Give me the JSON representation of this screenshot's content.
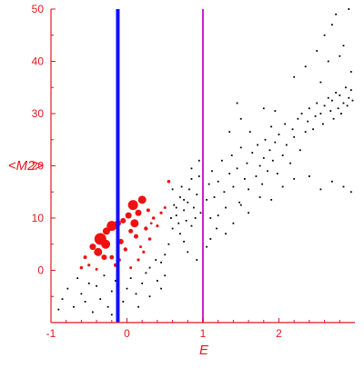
{
  "chart_data": {
    "type": "scatter",
    "title": "",
    "xlabel": "E",
    "ylabel": "<M2>",
    "xlim": [
      -1,
      3.0
    ],
    "ylim": [
      -10,
      50
    ],
    "x_ticks": [
      -1,
      0,
      1,
      2
    ],
    "y_ticks": [
      0,
      10,
      20,
      30,
      40,
      50
    ],
    "x_tick_labels": [
      "-1",
      "0",
      "1",
      "2"
    ],
    "y_tick_labels": [
      "0",
      "10",
      "20",
      "30",
      "40",
      "50"
    ],
    "grid": false,
    "axis_color": "#e4161b",
    "vertical_lines": [
      {
        "x": -0.12,
        "color": "#1010ff"
      },
      {
        "x": 1.0,
        "color": "#cc22cc"
      }
    ],
    "series": [
      {
        "color": "#ee1111",
        "marker": "circle",
        "points": [
          {
            "x": -0.35,
            "y": 6.0,
            "s": 6.5
          },
          {
            "x": -0.28,
            "y": 5.0,
            "s": 5.0
          },
          {
            "x": -0.27,
            "y": 7.5,
            "s": 4.0
          },
          {
            "x": -0.2,
            "y": 8.5,
            "s": 5.5
          },
          {
            "x": -0.12,
            "y": 9.0,
            "s": 3.5
          },
          {
            "x": -0.05,
            "y": 9.5,
            "s": 3.0
          },
          {
            "x": -0.08,
            "y": 5.5,
            "s": 3.0
          },
          {
            "x": -0.45,
            "y": 4.5,
            "s": 3.5
          },
          {
            "x": -0.38,
            "y": 3.5,
            "s": 4.5
          },
          {
            "x": -0.3,
            "y": 2.5,
            "s": 3.0
          },
          {
            "x": 0.02,
            "y": 10.5,
            "s": 3.5
          },
          {
            "x": 0.08,
            "y": 12.5,
            "s": 5.5
          },
          {
            "x": 0.1,
            "y": 9.0,
            "s": 4.5
          },
          {
            "x": 0.15,
            "y": 11.0,
            "s": 3.5
          },
          {
            "x": 0.2,
            "y": 13.5,
            "s": 4.5
          },
          {
            "x": 0.05,
            "y": 7.5,
            "s": 2.5
          },
          {
            "x": -0.02,
            "y": 4.0,
            "s": 2.2
          },
          {
            "x": 0.12,
            "y": 6.5,
            "s": 2.5
          },
          {
            "x": 0.25,
            "y": 8.0,
            "s": 2.2
          },
          {
            "x": 0.28,
            "y": 11.5,
            "s": 2.0
          },
          {
            "x": 0.35,
            "y": 10.0,
            "s": 1.8
          },
          {
            "x": 0.4,
            "y": 8.5,
            "s": 1.6
          },
          {
            "x": 0.3,
            "y": 6.0,
            "s": 1.8
          },
          {
            "x": 0.22,
            "y": 3.5,
            "s": 1.6
          },
          {
            "x": 0.15,
            "y": 2.0,
            "s": 1.6
          },
          {
            "x": 0.05,
            "y": 0.5,
            "s": 1.5
          },
          {
            "x": -0.55,
            "y": 2.5,
            "s": 2.0
          },
          {
            "x": -0.6,
            "y": 0.5,
            "s": 1.8
          },
          {
            "x": -0.5,
            "y": 1.0,
            "s": 1.6
          },
          {
            "x": -0.4,
            "y": 0.2,
            "s": 1.5
          },
          {
            "x": -0.2,
            "y": 2.5,
            "s": 2.4
          },
          {
            "x": -0.15,
            "y": 1.0,
            "s": 2.0
          },
          {
            "x": 0.45,
            "y": 11.0,
            "s": 1.6
          },
          {
            "x": 0.5,
            "y": 12.0,
            "s": 1.5
          },
          {
            "x": 0.55,
            "y": 17.0,
            "s": 1.8
          },
          {
            "x": 0.18,
            "y": 4.5,
            "s": 1.5
          },
          {
            "x": -0.1,
            "y": 2.0,
            "s": 1.8
          },
          {
            "x": 0.32,
            "y": 9.0,
            "s": 1.4
          }
        ]
      },
      {
        "color": "#000000",
        "marker": "square",
        "points": [
          {
            "x": -0.9,
            "y": -7.5
          },
          {
            "x": -0.85,
            "y": -5.5
          },
          {
            "x": -0.78,
            "y": -3.5
          },
          {
            "x": -0.7,
            "y": -7.0
          },
          {
            "x": -0.65,
            "y": -1.5
          },
          {
            "x": -0.6,
            "y": -4.5
          },
          {
            "x": -0.55,
            "y": -6.0
          },
          {
            "x": -0.5,
            "y": -2.5
          },
          {
            "x": -0.45,
            "y": -8.0
          },
          {
            "x": -0.4,
            "y": -3.0
          },
          {
            "x": -0.35,
            "y": -5.5
          },
          {
            "x": -0.3,
            "y": -1.0
          },
          {
            "x": -0.25,
            "y": -7.0
          },
          {
            "x": -0.2,
            "y": -4.0
          },
          {
            "x": -0.15,
            "y": -2.0
          },
          {
            "x": -0.05,
            "y": -6.0
          },
          {
            "x": 0.0,
            "y": -3.5
          },
          {
            "x": 0.05,
            "y": -1.5
          },
          {
            "x": 0.12,
            "y": -4.5
          },
          {
            "x": 0.2,
            "y": -2.5
          },
          {
            "x": 0.25,
            "y": -0.5
          },
          {
            "x": 0.3,
            "y": 0.5
          },
          {
            "x": 0.38,
            "y": 2.0
          },
          {
            "x": 0.45,
            "y": 1.5
          },
          {
            "x": 0.5,
            "y": 3.0
          },
          {
            "x": 0.55,
            "y": 5.0
          },
          {
            "x": 0.6,
            "y": 8.0
          },
          {
            "x": 0.62,
            "y": 12.5
          },
          {
            "x": 0.65,
            "y": 10.5
          },
          {
            "x": 0.7,
            "y": 14.0
          },
          {
            "x": 0.72,
            "y": 16.0
          },
          {
            "x": 0.75,
            "y": 11.5
          },
          {
            "x": 0.78,
            "y": 9.5
          },
          {
            "x": 0.8,
            "y": 13.0
          },
          {
            "x": 0.82,
            "y": 15.5
          },
          {
            "x": 0.85,
            "y": 17.5
          },
          {
            "x": 0.88,
            "y": 12.0
          },
          {
            "x": 0.9,
            "y": 10.0
          },
          {
            "x": 0.92,
            "y": 14.5
          },
          {
            "x": 0.95,
            "y": 18.0
          },
          {
            "x": 0.97,
            "y": 11.0
          },
          {
            "x": 1.05,
            "y": 13.5
          },
          {
            "x": 1.08,
            "y": 16.5
          },
          {
            "x": 1.1,
            "y": 10.0
          },
          {
            "x": 1.12,
            "y": 19.0
          },
          {
            "x": 1.15,
            "y": 14.0
          },
          {
            "x": 1.18,
            "y": 8.0
          },
          {
            "x": 1.2,
            "y": 17.0
          },
          {
            "x": 1.25,
            "y": 21.0
          },
          {
            "x": 1.28,
            "y": 15.0
          },
          {
            "x": 1.3,
            "y": 12.0
          },
          {
            "x": 1.35,
            "y": 18.5
          },
          {
            "x": 1.38,
            "y": 22.0
          },
          {
            "x": 1.4,
            "y": 16.0
          },
          {
            "x": 1.45,
            "y": 19.5
          },
          {
            "x": 1.48,
            "y": 13.0
          },
          {
            "x": 1.5,
            "y": 23.5
          },
          {
            "x": 1.55,
            "y": 17.5
          },
          {
            "x": 1.58,
            "y": 20.5
          },
          {
            "x": 1.6,
            "y": 15.5
          },
          {
            "x": 1.62,
            "y": 26.5
          },
          {
            "x": 1.65,
            "y": 22.5
          },
          {
            "x": 1.7,
            "y": 18.0
          },
          {
            "x": 1.72,
            "y": 24.0
          },
          {
            "x": 1.75,
            "y": 20.0
          },
          {
            "x": 1.78,
            "y": 16.5
          },
          {
            "x": 1.8,
            "y": 21.5
          },
          {
            "x": 1.82,
            "y": 25.0
          },
          {
            "x": 1.85,
            "y": 19.0
          },
          {
            "x": 1.88,
            "y": 23.0
          },
          {
            "x": 1.9,
            "y": 27.5
          },
          {
            "x": 1.92,
            "y": 21.0
          },
          {
            "x": 1.95,
            "y": 24.5
          },
          {
            "x": 1.98,
            "y": 18.5
          },
          {
            "x": 2.0,
            "y": 26.0
          },
          {
            "x": 2.05,
            "y": 22.0
          },
          {
            "x": 2.08,
            "y": 28.0
          },
          {
            "x": 2.1,
            "y": 24.0
          },
          {
            "x": 2.15,
            "y": 20.5
          },
          {
            "x": 2.18,
            "y": 27.0
          },
          {
            "x": 2.2,
            "y": 25.5
          },
          {
            "x": 2.25,
            "y": 29.0
          },
          {
            "x": 2.28,
            "y": 23.0
          },
          {
            "x": 2.3,
            "y": 30.0
          },
          {
            "x": 2.35,
            "y": 26.5
          },
          {
            "x": 2.38,
            "y": 28.5
          },
          {
            "x": 2.4,
            "y": 31.0
          },
          {
            "x": 2.45,
            "y": 27.0
          },
          {
            "x": 2.48,
            "y": 29.5
          },
          {
            "x": 2.5,
            "y": 32.0
          },
          {
            "x": 2.55,
            "y": 30.0
          },
          {
            "x": 2.58,
            "y": 28.0
          },
          {
            "x": 2.6,
            "y": 31.5
          },
          {
            "x": 2.65,
            "y": 33.0
          },
          {
            "x": 2.68,
            "y": 30.5
          },
          {
            "x": 2.7,
            "y": 32.5
          },
          {
            "x": 2.72,
            "y": 29.0
          },
          {
            "x": 2.75,
            "y": 34.0
          },
          {
            "x": 2.78,
            "y": 31.0
          },
          {
            "x": 2.8,
            "y": 33.5
          },
          {
            "x": 2.82,
            "y": 30.0
          },
          {
            "x": 2.85,
            "y": 32.0
          },
          {
            "x": 2.88,
            "y": 35.0
          },
          {
            "x": 2.9,
            "y": 31.5
          },
          {
            "x": 2.92,
            "y": 33.0
          },
          {
            "x": 2.95,
            "y": 34.5
          },
          {
            "x": 2.97,
            "y": 32.5
          },
          {
            "x": 2.2,
            "y": 37.0
          },
          {
            "x": 2.35,
            "y": 39.0
          },
          {
            "x": 2.5,
            "y": 42.0
          },
          {
            "x": 2.6,
            "y": 45.0
          },
          {
            "x": 2.7,
            "y": 47.0
          },
          {
            "x": 2.75,
            "y": 49.0
          },
          {
            "x": 2.85,
            "y": 43.0
          },
          {
            "x": 2.92,
            "y": 50.0
          },
          {
            "x": 2.55,
            "y": 36.0
          },
          {
            "x": 2.65,
            "y": 40.0
          },
          {
            "x": 2.8,
            "y": 41.0
          },
          {
            "x": 2.95,
            "y": 38.0
          },
          {
            "x": 2.2,
            "y": 17.5
          },
          {
            "x": 2.4,
            "y": 18.0
          },
          {
            "x": 2.55,
            "y": 15.5
          },
          {
            "x": 2.7,
            "y": 17.0
          },
          {
            "x": 2.85,
            "y": 16.0
          },
          {
            "x": 2.95,
            "y": 15.0
          },
          {
            "x": 1.9,
            "y": 13.5
          },
          {
            "x": 2.05,
            "y": 16.0
          },
          {
            "x": 1.75,
            "y": 14.0
          },
          {
            "x": 1.4,
            "y": 9.0
          },
          {
            "x": 1.3,
            "y": 7.0
          },
          {
            "x": 1.2,
            "y": 10.5
          },
          {
            "x": 1.5,
            "y": 12.5
          },
          {
            "x": 1.6,
            "y": 11.0
          },
          {
            "x": 1.35,
            "y": 26.5
          },
          {
            "x": 1.5,
            "y": 29.0
          },
          {
            "x": 1.45,
            "y": 32.0
          },
          {
            "x": 1.8,
            "y": 31.0
          },
          {
            "x": 1.95,
            "y": 30.5
          },
          {
            "x": 0.95,
            "y": 21.0
          },
          {
            "x": 1.0,
            "y": 17.0
          },
          {
            "x": 0.85,
            "y": 19.5
          },
          {
            "x": 0.7,
            "y": 7.0
          },
          {
            "x": 0.75,
            "y": 5.5
          },
          {
            "x": 0.8,
            "y": 3.5
          },
          {
            "x": 0.92,
            "y": 2.0
          },
          {
            "x": 1.05,
            "y": 4.5
          },
          {
            "x": 1.1,
            "y": 6.0
          },
          {
            "x": 0.4,
            "y": -2.0
          },
          {
            "x": 0.5,
            "y": -1.0
          },
          {
            "x": 0.45,
            "y": -3.5
          },
          {
            "x": 0.3,
            "y": -5.0
          },
          {
            "x": 0.15,
            "y": -7.0
          },
          {
            "x": -0.2,
            "y": -8.5
          },
          {
            "x": 0.65,
            "y": 12.0
          },
          {
            "x": 0.75,
            "y": 13.5
          },
          {
            "x": 0.85,
            "y": 8.5
          },
          {
            "x": 0.6,
            "y": 15.5
          },
          {
            "x": 0.68,
            "y": 9.0
          },
          {
            "x": 0.58,
            "y": 10.0
          }
        ]
      }
    ]
  }
}
